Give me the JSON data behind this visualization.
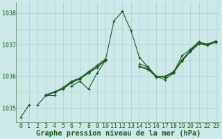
{
  "title": "Graphe pression niveau de la mer (hPa)",
  "bg_color": "#cce8e8",
  "grid_color": "#aed4d4",
  "line_color": "#1a5c1a",
  "marker_color": "#1a5c1a",
  "hours": [
    0,
    1,
    2,
    3,
    4,
    5,
    6,
    7,
    8,
    9,
    10,
    11,
    12,
    13,
    14,
    15,
    16,
    17,
    18,
    19,
    20,
    21,
    22,
    23
  ],
  "series": [
    [
      1034.7,
      1035.1,
      null,
      1035.4,
      1035.4,
      null,
      1035.7,
      1035.85,
      1035.6,
      1036.1,
      1036.5,
      1037.75,
      1038.05,
      1037.45,
      1036.6,
      1036.3,
      1036.0,
      1035.9,
      1036.1,
      1036.65,
      1036.85,
      1037.1,
      1037.0,
      1037.1
    ],
    [
      null,
      null,
      1035.1,
      1035.4,
      1035.5,
      1035.65,
      1035.85,
      1035.95,
      1036.15,
      1036.35,
      1036.55,
      null,
      null,
      null,
      1036.4,
      1036.3,
      1036.0,
      1036.0,
      1036.1,
      1036.5,
      1036.8,
      1037.05,
      1037.0,
      1037.1
    ],
    [
      null,
      null,
      null,
      1035.4,
      1035.5,
      1035.6,
      1035.8,
      1035.92,
      1036.1,
      1036.28,
      1036.5,
      null,
      null,
      null,
      1036.3,
      1036.22,
      1035.98,
      1035.98,
      1036.12,
      1036.48,
      1036.78,
      1037.02,
      1036.98,
      1037.08
    ],
    [
      null,
      null,
      null,
      1035.42,
      1035.52,
      1035.62,
      1035.82,
      1035.94,
      1036.12,
      1036.3,
      1036.52,
      null,
      null,
      null,
      1036.32,
      1036.25,
      1036.0,
      1036.0,
      1036.15,
      1036.52,
      1036.82,
      1037.07,
      1037.02,
      1037.12
    ]
  ],
  "ylim": [
    1034.55,
    1038.35
  ],
  "yticks": [
    1035,
    1036,
    1037,
    1038
  ],
  "xticks": [
    0,
    1,
    2,
    3,
    4,
    5,
    6,
    7,
    8,
    9,
    10,
    11,
    12,
    13,
    14,
    15,
    16,
    17,
    18,
    19,
    20,
    21,
    22,
    23
  ],
  "title_fontsize": 7.5,
  "tick_fontsize": 6,
  "ylabel_fontsize": 6
}
